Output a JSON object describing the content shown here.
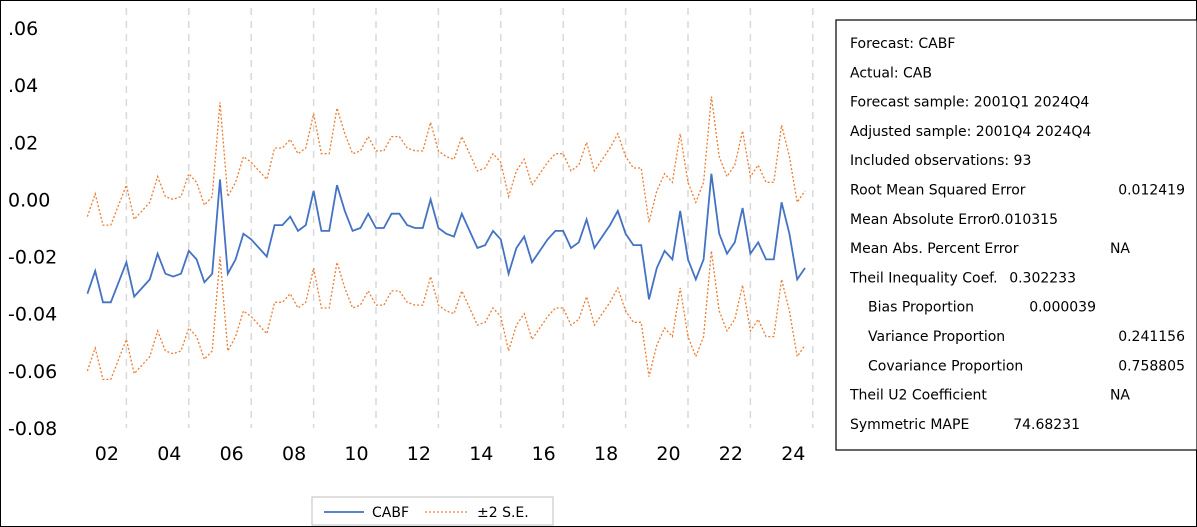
{
  "chart_data": {
    "type": "line",
    "x_start": "2001Q1",
    "frequency": "quarterly",
    "xtick_labels": [
      "02",
      "04",
      "06",
      "08",
      "10",
      "12",
      "14",
      "16",
      "18",
      "20",
      "22",
      "24"
    ],
    "ytick_labels": [
      ".06",
      ".04",
      ".02",
      "0.00",
      "-0.02",
      "-0.04",
      "-0.06",
      "-0.08"
    ],
    "ylim": [
      -0.08,
      0.06
    ],
    "vertical_grid": "dashed, every 2 years",
    "series": [
      {
        "name": "CABF",
        "color": "#4472C4",
        "style": "solid",
        "values": [
          -0.033,
          -0.025,
          -0.036,
          -0.036,
          -0.029,
          -0.022,
          -0.034,
          -0.031,
          -0.028,
          -0.019,
          -0.026,
          -0.027,
          -0.026,
          -0.018,
          -0.021,
          -0.029,
          -0.026,
          0.007,
          -0.026,
          -0.021,
          -0.012,
          -0.014,
          -0.017,
          -0.02,
          -0.009,
          -0.009,
          -0.006,
          -0.011,
          -0.009,
          0.003,
          -0.011,
          -0.011,
          0.005,
          -0.004,
          -0.011,
          -0.01,
          -0.005,
          -0.01,
          -0.01,
          -0.005,
          -0.005,
          -0.009,
          -0.01,
          -0.01,
          0.0,
          -0.01,
          -0.012,
          -0.013,
          -0.005,
          -0.011,
          -0.017,
          -0.016,
          -0.011,
          -0.014,
          -0.026,
          -0.017,
          -0.013,
          -0.022,
          -0.018,
          -0.014,
          -0.011,
          -0.011,
          -0.017,
          -0.015,
          -0.007,
          -0.017,
          -0.013,
          -0.009,
          -0.004,
          -0.012,
          -0.016,
          -0.016,
          -0.035,
          -0.024,
          -0.018,
          -0.021,
          -0.004,
          -0.021,
          -0.028,
          -0.021,
          0.009,
          -0.012,
          -0.019,
          -0.015,
          -0.003,
          -0.019,
          -0.015,
          -0.021,
          -0.021,
          -0.001,
          -0.012,
          -0.028,
          -0.024
        ],
        "band_halfwidth": 0.027
      },
      {
        "name": "±2 S.E.",
        "color": "#ED7D31",
        "style": "dotted"
      }
    ]
  },
  "stats": {
    "lines": [
      {
        "label": "Forecast: CABF",
        "value": "",
        "indent": 0
      },
      {
        "label": "Actual: CAB",
        "value": "",
        "indent": 0
      },
      {
        "label": "Forecast sample: 2001Q1 2024Q4",
        "value": "",
        "indent": 0
      },
      {
        "label": "Adjusted sample: 2001Q4 2024Q4",
        "value": "",
        "indent": 0
      },
      {
        "label": "Included observations: 93",
        "value": "",
        "indent": 0
      },
      {
        "label": "Root Mean Squared Error",
        "value": "0.012419",
        "indent": 0
      },
      {
        "label": "Mean Absolute Error",
        "value": "0.010315",
        "indent": 0
      },
      {
        "label": "Mean Abs. Percent Error",
        "value": "NA",
        "indent": 0
      },
      {
        "label": "Theil Inequality Coef.",
        "value": "0.302233",
        "indent": 0
      },
      {
        "label": "Bias Proportion",
        "value": "0.000039",
        "indent": 1
      },
      {
        "label": "Variance Proportion",
        "value": "0.241156",
        "indent": 1
      },
      {
        "label": "Covariance Proportion",
        "value": "0.758805",
        "indent": 1
      },
      {
        "label": "Theil U2 Coefficient",
        "value": "NA",
        "indent": 0
      },
      {
        "label": "Symmetric MAPE",
        "value": "74.68231",
        "indent": 0
      }
    ]
  },
  "legend": {
    "items": [
      {
        "label": "CABF",
        "color": "#4472C4",
        "style": "solid"
      },
      {
        "label": "±2 S.E.",
        "color": "#ED7D31",
        "style": "dotted"
      }
    ]
  }
}
